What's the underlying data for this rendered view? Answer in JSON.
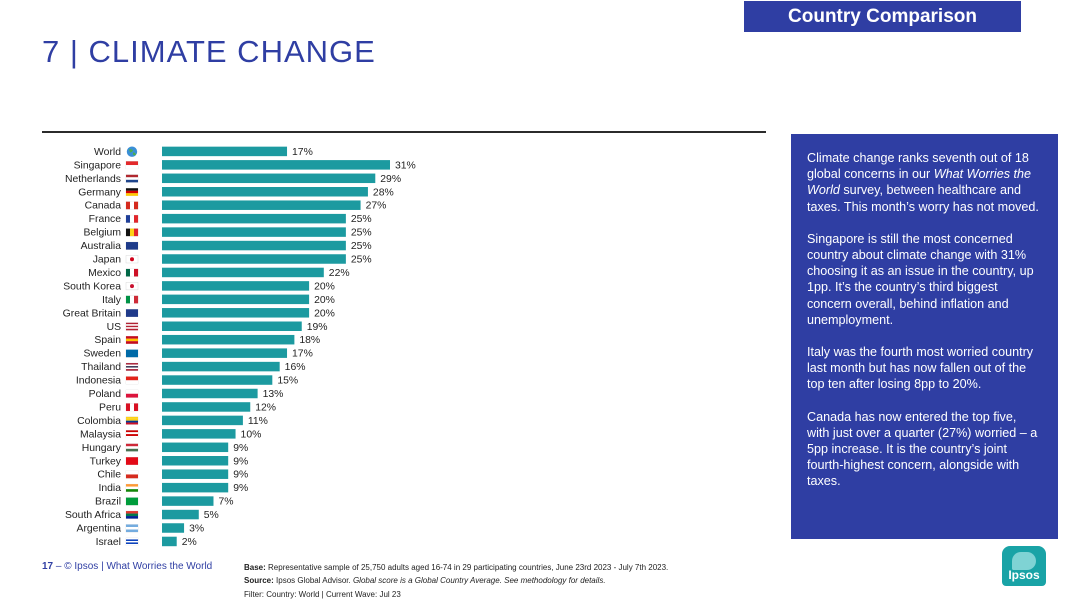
{
  "header": {
    "tag": "Country Comparison",
    "title": "7 | CLIMATE CHANGE"
  },
  "chart_data": {
    "type": "bar",
    "orientation": "horizontal",
    "categories": [
      "World",
      "Singapore",
      "Netherlands",
      "Germany",
      "Canada",
      "France",
      "Belgium",
      "Australia",
      "Japan",
      "Mexico",
      "South Korea",
      "Italy",
      "Great Britain",
      "US",
      "Spain",
      "Sweden",
      "Thailand",
      "Indonesia",
      "Poland",
      "Peru",
      "Colombia",
      "Malaysia",
      "Hungary",
      "Turkey",
      "Chile",
      "India",
      "Brazil",
      "South Africa",
      "Argentina",
      "Israel"
    ],
    "values": [
      17,
      31,
      29,
      28,
      27,
      25,
      25,
      25,
      25,
      22,
      20,
      20,
      20,
      19,
      18,
      17,
      16,
      15,
      13,
      12,
      11,
      10,
      9,
      9,
      9,
      9,
      7,
      5,
      3,
      2
    ],
    "value_labels": [
      "17%",
      "31%",
      "29%",
      "28%",
      "27%",
      "25%",
      "25%",
      "25%",
      "25%",
      "22%",
      "20%",
      "20%",
      "20%",
      "19%",
      "18%",
      "17%",
      "16%",
      "15%",
      "13%",
      "12%",
      "11%",
      "10%",
      "9%",
      "9%",
      "9%",
      "9%",
      "7%",
      "5%",
      "3%",
      "2%"
    ],
    "bar_color": "#1c9aa0",
    "xlim": [
      0,
      31
    ],
    "grid": false
  },
  "flags": [
    {
      "icon": "globe-icon"
    },
    {
      "icon": "flag-singapore-icon",
      "stripes": [
        "#e3292b",
        "#ffffff"
      ]
    },
    {
      "icon": "flag-netherlands-icon",
      "stripes": [
        "#b0282f",
        "#ffffff",
        "#1e448c"
      ]
    },
    {
      "icon": "flag-germany-icon",
      "stripes": [
        "#111111",
        "#d40000",
        "#ffcc00"
      ]
    },
    {
      "icon": "flag-canada-icon",
      "cols": [
        "#d52b1e",
        "#ffffff",
        "#d52b1e"
      ]
    },
    {
      "icon": "flag-france-icon",
      "cols": [
        "#1f3f99",
        "#ffffff",
        "#e1262b"
      ]
    },
    {
      "icon": "flag-belgium-icon",
      "cols": [
        "#111111",
        "#fcd116",
        "#e0252b"
      ]
    },
    {
      "icon": "flag-australia-icon",
      "stripes": [
        "#1e3b8a"
      ]
    },
    {
      "icon": "flag-japan-icon",
      "dot": "#d0021b"
    },
    {
      "icon": "flag-mexico-icon",
      "cols": [
        "#006847",
        "#ffffff",
        "#ce1126"
      ]
    },
    {
      "icon": "flag-south-korea-icon",
      "dot": "#c8102e"
    },
    {
      "icon": "flag-italy-icon",
      "cols": [
        "#009246",
        "#ffffff",
        "#ce2b37"
      ]
    },
    {
      "icon": "flag-great-britain-icon",
      "stripes": [
        "#1f3a8a"
      ]
    },
    {
      "icon": "flag-us-icon",
      "stripes": [
        "#b22234",
        "#ffffff",
        "#b22234",
        "#ffffff",
        "#b22234"
      ]
    },
    {
      "icon": "flag-spain-icon",
      "stripes": [
        "#c60b1e",
        "#ffc400",
        "#c60b1e"
      ]
    },
    {
      "icon": "flag-sweden-icon",
      "stripes": [
        "#006aa7"
      ]
    },
    {
      "icon": "flag-thailand-icon",
      "stripes": [
        "#a51931",
        "#ffffff",
        "#2d2a4a",
        "#ffffff",
        "#a51931"
      ]
    },
    {
      "icon": "flag-indonesia-icon",
      "stripes": [
        "#e2231a",
        "#ffffff"
      ]
    },
    {
      "icon": "flag-poland-icon",
      "stripes": [
        "#ffffff",
        "#dc143c"
      ]
    },
    {
      "icon": "flag-peru-icon",
      "cols": [
        "#d91023",
        "#ffffff",
        "#d91023"
      ]
    },
    {
      "icon": "flag-colombia-icon",
      "stripes": [
        "#fcd116",
        "#fcd116",
        "#003893",
        "#ce1126"
      ]
    },
    {
      "icon": "flag-malaysia-icon",
      "stripes": [
        "#cc0001",
        "#ffffff",
        "#cc0001",
        "#ffffff"
      ]
    },
    {
      "icon": "flag-hungary-icon",
      "stripes": [
        "#ce2939",
        "#ffffff",
        "#477050"
      ]
    },
    {
      "icon": "flag-turkey-icon",
      "stripes": [
        "#e30a17"
      ]
    },
    {
      "icon": "flag-chile-icon",
      "stripes": [
        "#ffffff",
        "#d52b1e"
      ]
    },
    {
      "icon": "flag-india-icon",
      "stripes": [
        "#ff9933",
        "#ffffff",
        "#138808"
      ]
    },
    {
      "icon": "flag-brazil-icon",
      "stripes": [
        "#009c3b"
      ]
    },
    {
      "icon": "flag-south-africa-icon",
      "stripes": [
        "#de3831",
        "#007a4d",
        "#002395"
      ]
    },
    {
      "icon": "flag-argentina-icon",
      "stripes": [
        "#74acdf",
        "#ffffff",
        "#74acdf"
      ]
    },
    {
      "icon": "flag-israel-icon",
      "stripes": [
        "#ffffff",
        "#0038b8",
        "#ffffff",
        "#0038b8",
        "#ffffff"
      ]
    }
  ],
  "panel": {
    "p1_a": "Climate change ranks seventh out of 18 global concerns in our ",
    "p1_em": "What Worries the World",
    "p1_b": " survey, between healthcare and taxes. This month’s worry has not moved.",
    "p2": "Singapore is still the most concerned country about climate change with 31% choosing it as an issue in the country, up 1pp. It’s the country’s third biggest concern overall, behind inflation and unemployment.",
    "p3": "Italy was the fourth most worried country last month but has now fallen out of the top ten after losing 8pp to 20%.",
    "p4": "Canada has now entered the top five, with just over a quarter (27%) worried – a 5pp increase. It is the country’s joint fourth-highest concern, alongside with taxes."
  },
  "footer": {
    "page_number": "17",
    "dash": "–",
    "copyright": "© Ipsos | What Worries the World",
    "base_label": "Base:",
    "base_text": " Representative sample of 25,750 adults aged 16-74 in 29 participating countries, June 23rd 2023 - July 7th 2023.",
    "source_label": "Source:",
    "source_text": " Ipsos Global Advisor. ",
    "source_em": "Global score is a Global Country Average. See methodology for details.",
    "filter_text": "Filter: Country: World | Current Wave: Jul 23",
    "logo_text": "Ipsos"
  },
  "colors": {
    "brand_blue": "#2f3ea3",
    "bar_teal": "#1c9aa0",
    "logo_teal": "#19a3a6"
  }
}
